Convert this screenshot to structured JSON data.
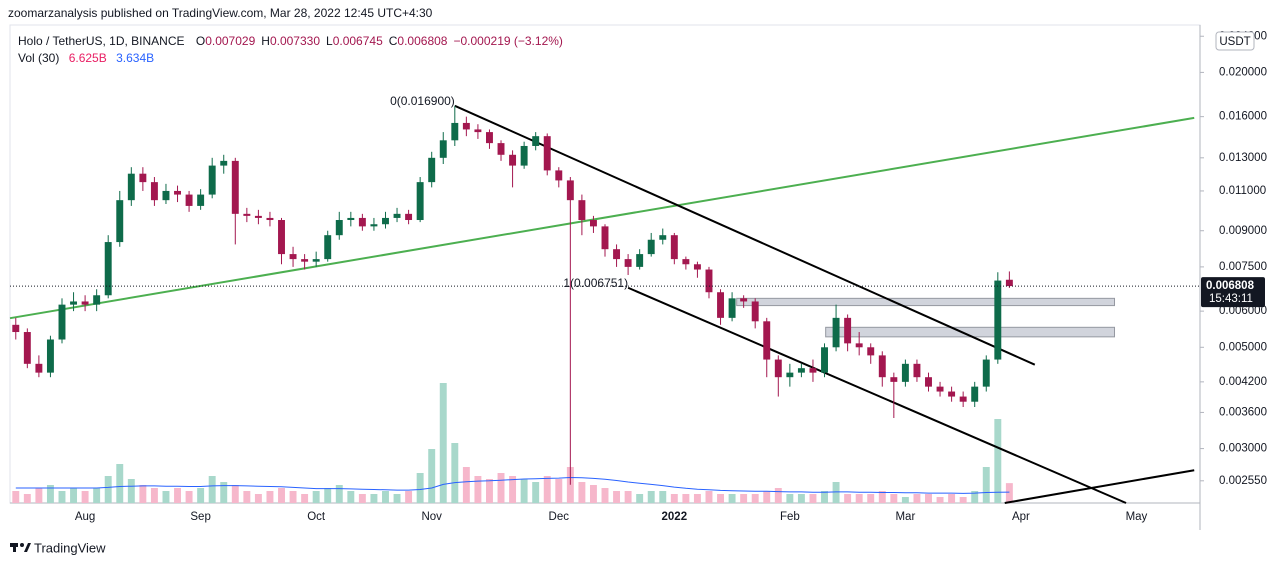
{
  "header": {
    "published": "zoomarzanalysis published on TradingView.com, Mar 28, 2022 12:45 UTC+4:30"
  },
  "footer": {
    "brand": "TradingView"
  },
  "chart_data": {
    "type": "candlestick",
    "symbol": "Holo / TetherUS, 1D, BINANCE",
    "ohlc_legend": [
      {
        "key": "O",
        "text": "0.007029"
      },
      {
        "key": "H",
        "text": "0.007330"
      },
      {
        "key": "L",
        "text": "0.006745"
      },
      {
        "key": "C",
        "text": "0.006808"
      }
    ],
    "change": "−0.000219 (−3.12%)",
    "volume_legend": {
      "name": "Vol (30)",
      "volume": "6.625B",
      "ma": "3.634B"
    },
    "currency": "USDT",
    "price_tag": {
      "price": "0.006808",
      "countdown": "15:43:11"
    },
    "log_scale": true,
    "grid": false,
    "up_color": "#0e6b4a",
    "down_color": "#a3174f",
    "volume_up_color": "#a8d8cb",
    "volume_down_color": "#f6b7cb",
    "ma_color": "#2962ff",
    "ylim": [
      0.00228,
      0.0254
    ],
    "yticks": [
      {
        "value": 0.024,
        "label": "0.024000"
      },
      {
        "value": 0.02,
        "label": "0.020000"
      },
      {
        "value": 0.016,
        "label": "0.016000"
      },
      {
        "value": 0.013,
        "label": "0.013000"
      },
      {
        "value": 0.011,
        "label": "0.011000"
      },
      {
        "value": 0.009,
        "label": "0.009000"
      },
      {
        "value": 0.0075,
        "label": "0.007500"
      },
      {
        "value": 0.006,
        "label": "0.006000"
      },
      {
        "value": 0.005,
        "label": "0.005000"
      },
      {
        "value": 0.0042,
        "label": "0.004200"
      },
      {
        "value": 0.0036,
        "label": "0.003600"
      },
      {
        "value": 0.003,
        "label": "0.003000"
      },
      {
        "value": 0.00255,
        "label": "0.002550"
      }
    ],
    "categories": [
      null,
      null,
      null,
      null,
      null,
      null,
      "Aug",
      null,
      null,
      null,
      null,
      null,
      null,
      null,
      null,
      null,
      "Sep",
      null,
      null,
      null,
      null,
      null,
      null,
      null,
      null,
      null,
      "Oct",
      null,
      null,
      null,
      null,
      null,
      null,
      null,
      null,
      null,
      "Nov",
      null,
      null,
      null,
      null,
      null,
      null,
      null,
      null,
      null,
      null,
      "Dec",
      null,
      null,
      null,
      null,
      null,
      null,
      null,
      null,
      null,
      "2022",
      null,
      null,
      null,
      null,
      null,
      null,
      null,
      null,
      null,
      "Feb",
      null,
      null,
      null,
      null,
      null,
      null,
      null,
      null,
      null,
      "Mar",
      null,
      null,
      null,
      null,
      null,
      null,
      null,
      null,
      null,
      "Apr",
      null,
      null,
      null,
      null,
      null,
      null,
      null,
      null,
      null,
      "May",
      null,
      null,
      null,
      null,
      null
    ],
    "open": [
      0.0056,
      0.0054,
      0.0046,
      0.0044,
      0.0052,
      0.0062,
      0.0063,
      0.0062,
      0.0065,
      0.0085,
      0.0105,
      0.012,
      0.0115,
      0.0105,
      0.011,
      0.0108,
      0.0102,
      0.0108,
      0.0125,
      0.0128,
      0.0098,
      0.0097,
      0.0096,
      0.0095,
      0.008,
      0.0078,
      0.0077,
      0.0078,
      0.0088,
      0.0095,
      0.0096,
      0.0092,
      0.0093,
      0.0096,
      0.0098,
      0.0095,
      0.0115,
      0.013,
      0.0142,
      0.0155,
      0.015,
      0.0148,
      0.014,
      0.0132,
      0.0125,
      0.0138,
      0.0145,
      0.0122,
      0.0116,
      0.0105,
      0.0095,
      0.0092,
      0.0082,
      0.0078,
      0.0075,
      0.008,
      0.0086,
      0.0088,
      0.0078,
      0.0076,
      0.0074,
      0.0066,
      0.0058,
      0.0064,
      0.0063,
      0.0057,
      0.0047,
      0.0043,
      0.0044,
      0.0045,
      0.0044,
      0.005,
      0.0058,
      0.0051,
      0.005,
      0.0048,
      0.0043,
      0.0042,
      0.0046,
      0.0043,
      0.0041,
      0.004,
      0.0039,
      0.0038,
      0.0041,
      0.0047,
      0.007029,
      null,
      null,
      null,
      null,
      null,
      null,
      null,
      null,
      null,
      null,
      null,
      null,
      null,
      null,
      null,
      null
    ],
    "high": [
      0.0058,
      0.0055,
      0.0048,
      0.0053,
      0.0064,
      0.0066,
      0.0065,
      0.0067,
      0.0088,
      0.011,
      0.0124,
      0.0124,
      0.0118,
      0.0114,
      0.0113,
      0.011,
      0.0111,
      0.013,
      0.0132,
      0.013,
      0.0101,
      0.01,
      0.0099,
      0.0096,
      0.0083,
      0.008,
      0.0081,
      0.009,
      0.0099,
      0.0099,
      0.0098,
      0.0096,
      0.0099,
      0.0101,
      0.01,
      0.0118,
      0.0134,
      0.0148,
      0.0169,
      0.016,
      0.0154,
      0.015,
      0.0142,
      0.0135,
      0.0141,
      0.0148,
      0.0147,
      0.0124,
      0.0118,
      0.0108,
      0.0097,
      0.0093,
      0.0084,
      0.008,
      0.0082,
      0.0089,
      0.0091,
      0.0089,
      0.0079,
      0.0077,
      0.0075,
      0.0067,
      0.0066,
      0.0065,
      0.0064,
      0.0058,
      0.0048,
      0.0046,
      0.0046,
      0.0047,
      0.0051,
      0.0062,
      0.0059,
      0.0054,
      0.0051,
      0.0049,
      0.0044,
      0.0047,
      0.0047,
      0.0044,
      0.0042,
      0.0041,
      0.004,
      0.0042,
      0.0048,
      0.0073,
      0.00733,
      null,
      null,
      null,
      null,
      null,
      null,
      null,
      null,
      null,
      null,
      null,
      null,
      null,
      null,
      null,
      null
    ],
    "low": [
      0.0052,
      0.0045,
      0.0043,
      0.0043,
      0.0051,
      0.006,
      0.006,
      0.006,
      0.0064,
      0.0083,
      0.0102,
      0.011,
      0.0102,
      0.0103,
      0.0104,
      0.0099,
      0.01,
      0.0106,
      0.012,
      0.0084,
      0.0094,
      0.0093,
      0.0092,
      0.0076,
      0.0075,
      0.0074,
      0.0075,
      0.0077,
      0.0086,
      0.0092,
      0.009,
      0.009,
      0.0091,
      0.0094,
      0.0093,
      0.0094,
      0.0112,
      0.0126,
      0.0138,
      0.0145,
      0.0143,
      0.0136,
      0.0128,
      0.0112,
      0.0123,
      0.0135,
      0.0119,
      0.0112,
      0.0025,
      0.0088,
      0.0089,
      0.0079,
      0.0075,
      0.0072,
      0.0074,
      0.0079,
      0.0084,
      0.0076,
      0.0074,
      0.0071,
      0.0064,
      0.0056,
      0.0057,
      0.0061,
      0.0055,
      0.0043,
      0.0039,
      0.0041,
      0.0043,
      0.0042,
      0.0043,
      0.0049,
      0.0049,
      0.0048,
      0.0046,
      0.0041,
      0.0035,
      0.0041,
      0.0042,
      0.004,
      0.0039,
      0.0038,
      0.0037,
      0.0037,
      0.004,
      0.0046,
      0.006745,
      null,
      null,
      null,
      null,
      null,
      null,
      null,
      null,
      null,
      null,
      null,
      null,
      null,
      null,
      null,
      null
    ],
    "close": [
      0.0054,
      0.0046,
      0.0044,
      0.0052,
      0.0062,
      0.0063,
      0.0062,
      0.0065,
      0.0085,
      0.0105,
      0.012,
      0.0115,
      0.0105,
      0.011,
      0.0108,
      0.0102,
      0.0108,
      0.0125,
      0.0128,
      0.0098,
      0.0097,
      0.0096,
      0.0095,
      0.008,
      0.0078,
      0.0077,
      0.0078,
      0.0088,
      0.0095,
      0.0096,
      0.0092,
      0.0093,
      0.0096,
      0.0098,
      0.0095,
      0.0115,
      0.013,
      0.0142,
      0.0155,
      0.015,
      0.0148,
      0.014,
      0.0132,
      0.0125,
      0.0138,
      0.0145,
      0.0122,
      0.0116,
      0.0105,
      0.0095,
      0.0092,
      0.0082,
      0.0078,
      0.0075,
      0.008,
      0.0086,
      0.0088,
      0.0078,
      0.0076,
      0.0074,
      0.0066,
      0.0058,
      0.0064,
      0.0063,
      0.0057,
      0.0047,
      0.0043,
      0.0044,
      0.0045,
      0.0044,
      0.005,
      0.0058,
      0.0051,
      0.005,
      0.0048,
      0.0043,
      0.0042,
      0.0046,
      0.0043,
      0.0041,
      0.004,
      0.0039,
      0.0038,
      0.0041,
      0.0047,
      0.007,
      0.006808,
      null,
      null,
      null,
      null,
      null,
      null,
      null,
      null,
      null,
      null,
      null,
      null,
      null,
      null,
      null,
      null
    ],
    "volume": [
      4,
      3,
      5,
      6,
      4,
      5,
      4,
      5,
      9,
      13,
      8,
      6,
      5,
      4,
      5,
      4,
      5,
      9,
      7,
      6,
      4,
      3,
      4,
      5,
      4,
      3,
      4,
      5,
      6,
      4,
      3,
      3,
      4,
      3,
      4,
      10,
      18,
      40,
      20,
      12,
      9,
      8,
      10,
      9,
      8,
      7,
      9,
      8,
      12,
      7,
      6,
      5,
      4,
      4,
      3,
      4,
      4,
      3,
      3,
      3,
      4,
      3,
      3,
      3,
      3,
      4,
      5,
      3,
      3,
      3,
      4,
      7,
      3,
      3,
      3,
      4,
      3,
      2,
      3,
      3,
      2,
      3,
      2,
      4,
      12,
      28,
      6.625,
      null,
      null,
      null,
      null,
      null,
      null,
      null,
      null,
      null,
      null,
      null,
      null,
      null,
      null,
      null,
      null
    ],
    "volume_ma": [
      5,
      5,
      5,
      5,
      5,
      5,
      5,
      5,
      5.2,
      5.5,
      5.6,
      5.7,
      5.7,
      5.6,
      5.6,
      5.5,
      5.5,
      5.7,
      5.8,
      5.8,
      5.7,
      5.6,
      5.5,
      5.4,
      5.2,
      5,
      4.8,
      4.8,
      4.8,
      4.7,
      4.6,
      4.5,
      4.4,
      4.3,
      4.3,
      4.5,
      5,
      6.2,
      6.8,
      7.1,
      7.3,
      7.4,
      7.6,
      7.8,
      8,
      8.1,
      8.2,
      8.3,
      8.5,
      8.4,
      8.2,
      7.9,
      7.5,
      7,
      6.6,
      6.2,
      5.8,
      5.3,
      4.9,
      4.6,
      4.4,
      4.2,
      4.1,
      4,
      3.9,
      3.9,
      3.8,
      3.7,
      3.7,
      3.6,
      3.6,
      3.7,
      3.7,
      3.6,
      3.6,
      3.5,
      3.5,
      3.4,
      3.4,
      3.3,
      3.3,
      3.3,
      3.2,
      3.3,
      3.5,
      3.6,
      3.634,
      null,
      null,
      null,
      null,
      null,
      null,
      null,
      null,
      null,
      null,
      null,
      null,
      null,
      null,
      null,
      null
    ],
    "drawings": [
      {
        "kind": "box",
        "from": [
          62.4,
          0.0064
        ],
        "to": [
          95.1,
          0.00617
        ]
      },
      {
        "kind": "box",
        "from": [
          70.1,
          0.00553
        ],
        "to": [
          95.1,
          0.00527
        ]
      },
      {
        "kind": "trend",
        "color": "#4caf50",
        "from": [
          -0.5,
          0.00579
        ],
        "to": [
          102,
          0.0159
        ]
      },
      {
        "kind": "trend",
        "color": "#000000",
        "label": "0(0.016900)",
        "from": [
          38,
          0.0169
        ],
        "to": [
          88.2,
          0.00458
        ]
      },
      {
        "kind": "trend",
        "color": "#000000",
        "label": "1(0.006751)",
        "from": [
          53,
          0.006751
        ],
        "to": [
          96.1,
          0.00228
        ]
      },
      {
        "kind": "trend",
        "color": "#000000",
        "from": [
          85.6,
          0.00228
        ],
        "to": [
          102,
          0.00269
        ]
      }
    ]
  }
}
